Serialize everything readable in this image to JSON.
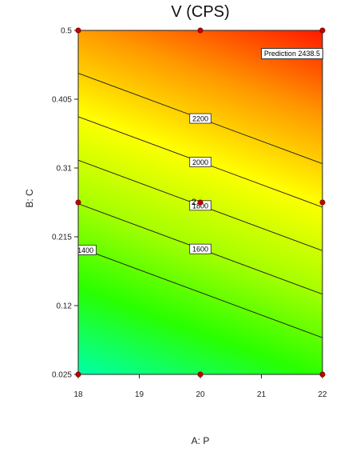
{
  "chart_data": {
    "type": "heatmap",
    "subtype": "contour",
    "title": "V (CPS)",
    "xlabel": "A: P",
    "ylabel": "B: C",
    "xlim": [
      18,
      22
    ],
    "ylim": [
      0.025,
      0.5
    ],
    "x_ticks": [
      "18",
      "19",
      "20",
      "21",
      "22"
    ],
    "y_ticks": [
      "0.025",
      "0.12",
      "0.215",
      "0.31",
      "0.405",
      "0.5"
    ],
    "contour_levels": [
      1400,
      1600,
      1800,
      2000,
      2200
    ],
    "contour_labels": [
      "1400",
      "1600",
      "1800",
      "2000",
      "2200"
    ],
    "surface_model": {
      "intercept": 1814.0,
      "coef_x": 104.0,
      "coef_y": 3330.0,
      "x_ref": 20,
      "y_ref": 0.2625
    },
    "colormap": [
      "#00ffaa",
      "#28ff00",
      "#a8ff00",
      "#ffff00",
      "#ff9900",
      "#ff1a00"
    ],
    "design_points": [
      {
        "x": 18,
        "y": 0.5
      },
      {
        "x": 20,
        "y": 0.5
      },
      {
        "x": 22,
        "y": 0.5
      },
      {
        "x": 18,
        "y": 0.2625
      },
      {
        "x": 20,
        "y": 0.2625
      },
      {
        "x": 22,
        "y": 0.2625
      },
      {
        "x": 18,
        "y": 0.025
      },
      {
        "x": 20,
        "y": 0.025
      },
      {
        "x": 22,
        "y": 0.025
      }
    ],
    "center_point_label": "2",
    "prediction": {
      "label": "Prediction",
      "value": "2438.5",
      "x": 22,
      "y": 0.5
    }
  }
}
